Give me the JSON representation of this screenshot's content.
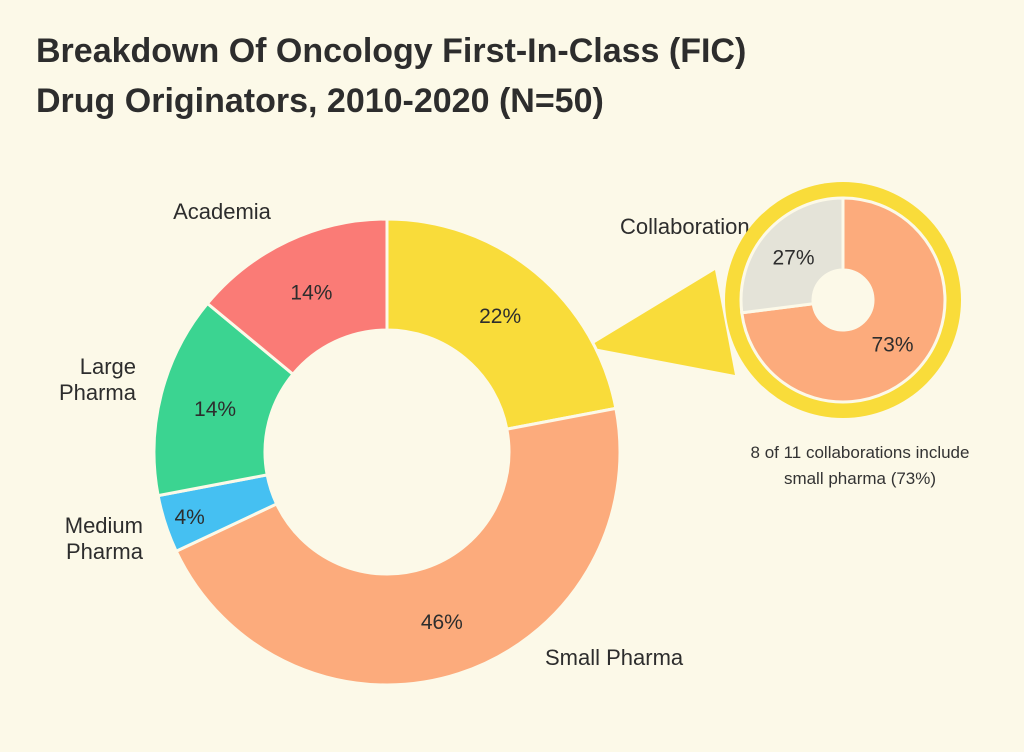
{
  "title_lines": [
    "Breakdown Of Oncology First-In-Class (FIC)",
    "Drug Originators, 2010-2020 (N=50)"
  ],
  "note_lines": [
    "8 of 11 collaborations include",
    "small pharma (73%)"
  ],
  "chart_data": [
    {
      "type": "pie",
      "donut": true,
      "title": "Breakdown Of Oncology First-In-Class (FIC) Drug Originators, 2010-2020 (N=50)",
      "slices": [
        {
          "label": [
            "Collaboration"
          ],
          "value": 22,
          "value_label": "22%",
          "color": "#f9dc3a"
        },
        {
          "label": [
            "Small Pharma"
          ],
          "value": 46,
          "value_label": "46%",
          "color": "#fcab7c"
        },
        {
          "label": [
            "Medium",
            "Pharma"
          ],
          "value": 4,
          "value_label": "4%",
          "color": "#45c0f2"
        },
        {
          "label": [
            "Large",
            "Pharma"
          ],
          "value": 14,
          "value_label": "14%",
          "color": "#3bd491"
        },
        {
          "label": [
            "Academia"
          ],
          "value": 14,
          "value_label": "14%",
          "color": "#fa7b76"
        }
      ]
    },
    {
      "type": "pie",
      "donut": true,
      "subset_of": "Collaboration",
      "slices": [
        {
          "value": 73,
          "value_label": "73%",
          "color": "#fcab7c"
        },
        {
          "value": 27,
          "value_label": "27%",
          "color": "#e4e3d8"
        }
      ]
    }
  ]
}
